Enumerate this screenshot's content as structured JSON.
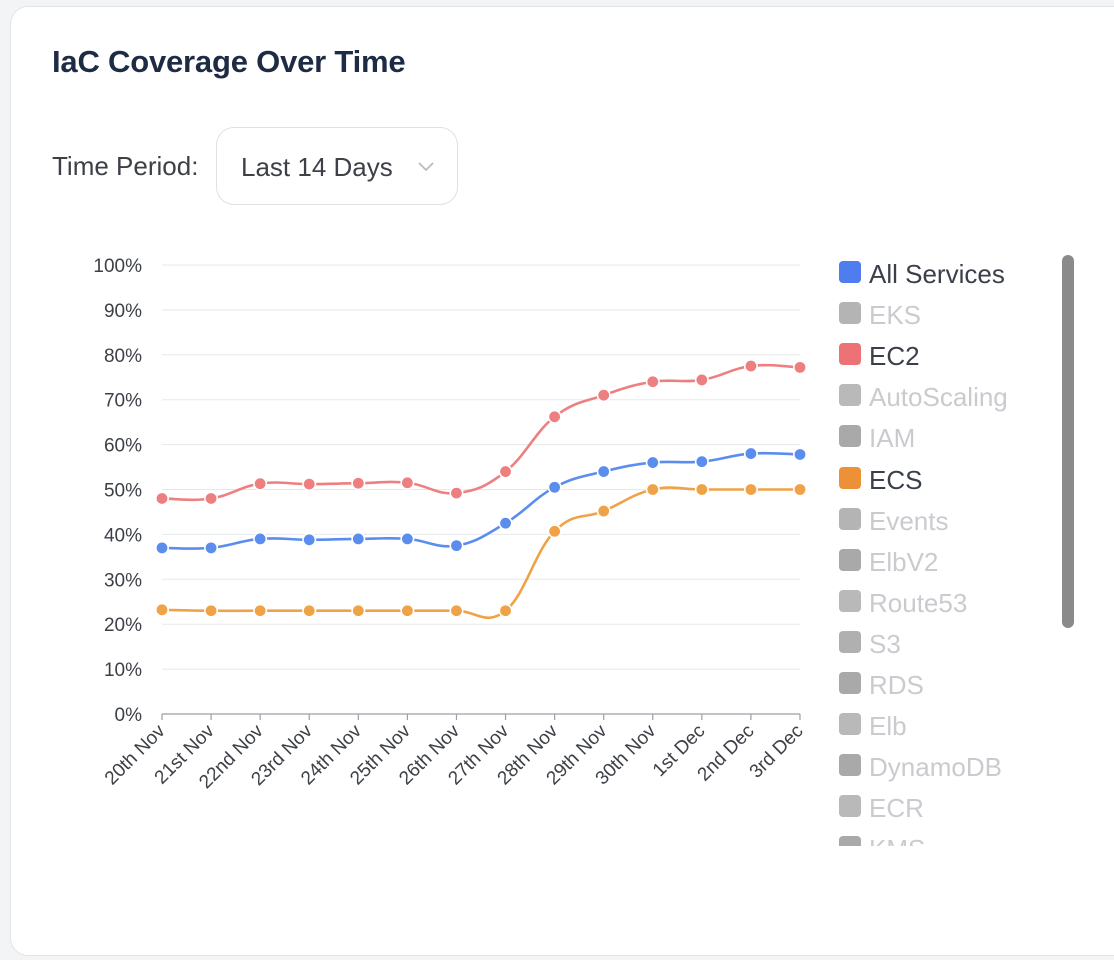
{
  "card": {
    "title": "IaC Coverage Over Time"
  },
  "filter": {
    "label": "Time Period:",
    "selected": "Last 14 Days"
  },
  "chart_data": {
    "type": "line",
    "categories": [
      "20th Nov",
      "21st Nov",
      "22nd Nov",
      "23rd Nov",
      "24th Nov",
      "25th Nov",
      "26th Nov",
      "27th Nov",
      "28th Nov",
      "29th Nov",
      "30th Nov",
      "1st Dec",
      "2nd Dec",
      "3rd Dec"
    ],
    "y_ticks": [
      "0%",
      "10%",
      "20%",
      "30%",
      "40%",
      "50%",
      "60%",
      "70%",
      "80%",
      "90%",
      "100%"
    ],
    "ylim": [
      0,
      100
    ],
    "grid": true,
    "legend_position": "right",
    "series": [
      {
        "name": "All Services",
        "color": "#5b8def",
        "values": [
          37,
          37,
          39,
          38.8,
          39,
          39,
          37.5,
          42.5,
          50.5,
          54,
          56,
          56.2,
          58,
          57.8
        ]
      },
      {
        "name": "EC2",
        "color": "#ee7f80",
        "values": [
          48,
          48,
          51.3,
          51.2,
          51.4,
          51.5,
          49.2,
          54,
          66.2,
          71,
          74,
          74.4,
          77.5,
          77.2
        ]
      },
      {
        "name": "ECS",
        "color": "#f0a246",
        "values": [
          23.2,
          23,
          23,
          23,
          23,
          23,
          23,
          23,
          40.7,
          45.2,
          50,
          50,
          50,
          50
        ]
      }
    ],
    "legend": [
      {
        "name": "All Services",
        "color": "#4f7def",
        "active": true
      },
      {
        "name": "EKS",
        "color": "#b4b4b4",
        "active": false
      },
      {
        "name": "EC2",
        "color": "#ec7275",
        "active": true
      },
      {
        "name": "AutoScaling",
        "color": "#b9b9b9",
        "active": false
      },
      {
        "name": "IAM",
        "color": "#a9a9a9",
        "active": false
      },
      {
        "name": "ECS",
        "color": "#ec9138",
        "active": true
      },
      {
        "name": "Events",
        "color": "#b4b4b4",
        "active": false
      },
      {
        "name": "ElbV2",
        "color": "#a9a9a9",
        "active": false
      },
      {
        "name": "Route53",
        "color": "#b9b9b9",
        "active": false
      },
      {
        "name": "S3",
        "color": "#b0b0b0",
        "active": false
      },
      {
        "name": "RDS",
        "color": "#a9a9a9",
        "active": false
      },
      {
        "name": "Elb",
        "color": "#b9b9b9",
        "active": false
      },
      {
        "name": "DynamoDB",
        "color": "#a9a9a9",
        "active": false
      },
      {
        "name": "ECR",
        "color": "#b9b9b9",
        "active": false
      },
      {
        "name": "KMS",
        "color": "#a9a9a9",
        "active": false
      }
    ]
  }
}
